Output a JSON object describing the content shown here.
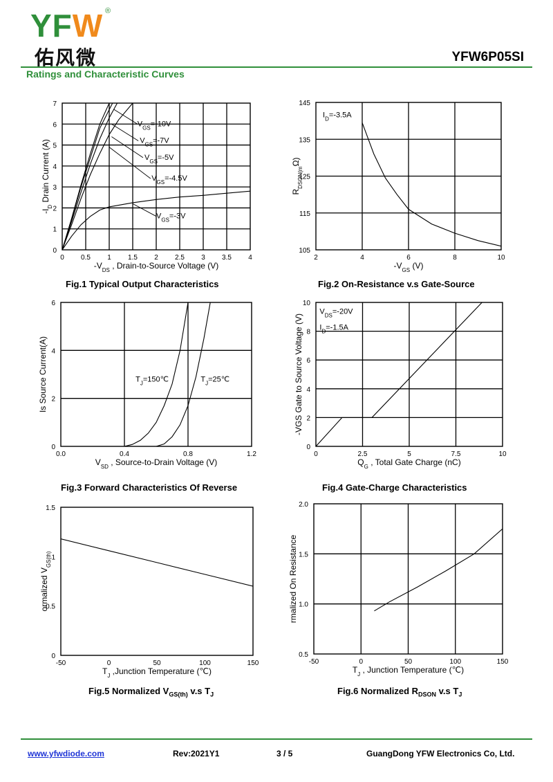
{
  "header": {
    "brand_latin": "YFW",
    "brand_cn": "佑风微",
    "registered": "®",
    "part_number": "YFW6P05SI",
    "section_title": "Ratings and Characteristic Curves"
  },
  "footer": {
    "website": "www.yfwdiode.com",
    "revision": "Rev:2021Y1",
    "page": "3 / 5",
    "company": "GuangDong YFW Electronics Co, Ltd."
  },
  "colors": {
    "brand_green": "#2f8f3a",
    "brand_orange": "#f08a1c",
    "link_blue": "#1f35d6"
  },
  "chart_data": [
    {
      "id": "fig1",
      "type": "line",
      "caption": "Fig.1 Typical Output Characteristics",
      "xlabel": "-V_DS , Drain-to-Source Voltage (V)",
      "ylabel": "-I_D Drain Current (A)",
      "xlim": [
        0,
        4
      ],
      "ylim": [
        0,
        7
      ],
      "grid": true,
      "xticks": [
        0,
        0.5,
        1,
        1.5,
        2,
        2.5,
        3,
        3.5,
        4
      ],
      "xticklabels": [
        "0",
        "0.5",
        "1",
        "1.5",
        "2",
        "2.5",
        "3",
        "3.5",
        "4"
      ],
      "yticks": [
        0,
        1,
        2,
        3,
        4,
        5,
        6,
        7
      ],
      "yticklabels": [
        "0",
        "1",
        "2",
        "3",
        "4",
        "5",
        "6",
        "7"
      ],
      "series": [
        {
          "name": "V_GS=-10V",
          "x": [
            0,
            0.2,
            0.4,
            0.6,
            0.8,
            1.0
          ],
          "y": [
            0,
            1.5,
            3.1,
            4.6,
            6.0,
            7.0
          ]
        },
        {
          "name": "V_GS=-7V",
          "x": [
            0,
            0.2,
            0.4,
            0.6,
            0.8,
            1.07
          ],
          "y": [
            0,
            1.45,
            3.0,
            4.4,
            5.8,
            7.0
          ]
        },
        {
          "name": "V_GS=-5V",
          "x": [
            0,
            0.2,
            0.4,
            0.6,
            0.8,
            1.0,
            1.17
          ],
          "y": [
            0,
            1.35,
            2.75,
            4.1,
            5.3,
            6.3,
            7.0
          ]
        },
        {
          "name": "V_GS=-4.5V",
          "x": [
            0,
            0.2,
            0.4,
            0.6,
            0.8,
            1.0,
            1.2,
            1.5
          ],
          "y": [
            0,
            1.2,
            2.45,
            3.6,
            4.6,
            5.5,
            6.2,
            7.0
          ]
        },
        {
          "name": "V_GS=-3V",
          "x": [
            0,
            0.2,
            0.4,
            0.6,
            0.8,
            1.0,
            1.5,
            2.0,
            2.5,
            3.0,
            3.5,
            4.0
          ],
          "y": [
            0,
            0.65,
            1.2,
            1.6,
            1.9,
            2.05,
            2.25,
            2.4,
            2.52,
            2.6,
            2.7,
            2.8
          ]
        }
      ],
      "annotations": [
        {
          "text": "V_GS=-10V",
          "x": 1.6,
          "y": 5.9
        },
        {
          "text": "V_GS=-7V",
          "x": 1.65,
          "y": 5.1
        },
        {
          "text": "V_GS=-5V",
          "x": 1.75,
          "y": 4.3
        },
        {
          "text": "V_GS=-4.5V",
          "x": 1.9,
          "y": 3.3
        },
        {
          "text": "V_GS=-3V",
          "x": 2.0,
          "y": 1.5
        }
      ]
    },
    {
      "id": "fig2",
      "type": "line",
      "caption": "Fig.2 On-Resistance v.s Gate-Source",
      "xlabel": "-V_GS (V)",
      "ylabel": "R_DSON(mΩ)",
      "xlim": [
        2,
        10
      ],
      "ylim": [
        105,
        145
      ],
      "grid": true,
      "xticks": [
        2,
        4,
        6,
        8,
        10
      ],
      "xticklabels": [
        "2",
        "4",
        "6",
        "8",
        "10"
      ],
      "yticks": [
        105,
        115,
        125,
        135,
        145
      ],
      "yticklabels": [
        "105",
        "115",
        "125",
        "135",
        "145"
      ],
      "series": [
        {
          "x": [
            4.0,
            4.5,
            5.0,
            5.5,
            6.0,
            7.0,
            8.0,
            9.0,
            10.0
          ],
          "y": [
            139.5,
            131,
            124.5,
            120,
            116,
            112,
            109.5,
            107.5,
            106
          ]
        }
      ],
      "annotations": [
        {
          "text": "I_D=-3.5A",
          "x": 2.3,
          "y": 141
        }
      ]
    },
    {
      "id": "fig3",
      "type": "line",
      "caption": "Fig.3 Forward Characteristics Of Reverse",
      "xlabel": "V_SD , Source-to-Drain Voltage (V)",
      "ylabel": "Is Source Current(A)",
      "xlim": [
        0,
        1.2
      ],
      "ylim": [
        0,
        6
      ],
      "grid": true,
      "xticks": [
        0,
        0.4,
        0.8,
        1.2
      ],
      "xticklabels": [
        "0.0",
        "0.4",
        "0.8",
        "1.2"
      ],
      "yticks": [
        0,
        2,
        4,
        6
      ],
      "yticklabels": [
        "0",
        "2",
        "4",
        "6"
      ],
      "series": [
        {
          "name": "T_J=150℃",
          "x": [
            0,
            0.4,
            0.45,
            0.5,
            0.55,
            0.6,
            0.65,
            0.7,
            0.75,
            0.8
          ],
          "y": [
            0,
            0,
            0.08,
            0.25,
            0.55,
            1.0,
            1.7,
            2.6,
            4.0,
            6.0
          ]
        },
        {
          "name": "T_J=25℃",
          "x": [
            0,
            0.6,
            0.65,
            0.7,
            0.75,
            0.8,
            0.85,
            0.9,
            0.94
          ],
          "y": [
            0,
            0,
            0.1,
            0.4,
            0.9,
            1.7,
            2.9,
            4.5,
            6.0
          ]
        }
      ],
      "annotations": [
        {
          "text": "T_J=150℃",
          "x": 0.47,
          "y": 2.7
        },
        {
          "text": "T_J=25℃",
          "x": 0.88,
          "y": 2.7
        }
      ]
    },
    {
      "id": "fig4",
      "type": "line",
      "caption": "Fig.4 Gate-Charge Characteristics",
      "xlabel": "Q_G , Total Gate Charge (nC)",
      "ylabel": "-VGS Gate to Source Voltage (V)",
      "xlim": [
        0,
        10
      ],
      "ylim": [
        0,
        10
      ],
      "grid": true,
      "xticks": [
        0,
        2.5,
        5,
        7.5,
        10
      ],
      "xticklabels": [
        "0",
        "2.5",
        "5",
        "7.5",
        "10"
      ],
      "yticks": [
        0,
        2,
        4,
        6,
        8,
        10
      ],
      "yticklabels": [
        "0",
        "2",
        "4",
        "6",
        "8",
        "10"
      ],
      "series": [
        {
          "x": [
            0,
            1.4,
            3.0,
            8.9
          ],
          "y": [
            0,
            2.0,
            2.0,
            10.0
          ]
        }
      ],
      "annotations": [
        {
          "text": "V_DS=-20V",
          "x": 0.2,
          "y": 9.2
        },
        {
          "text": "I_D=-1.5A",
          "x": 0.2,
          "y": 8.1
        }
      ]
    },
    {
      "id": "fig5",
      "type": "line",
      "caption": "Fig.5 Normalized V_GS(th) v.s T_J",
      "xlabel": "T_J ,Junction Temperature (℃)",
      "ylabel": "ormalized V_GS(th)",
      "xlim": [
        -50,
        150
      ],
      "ylim": [
        0,
        1.5
      ],
      "grid": false,
      "xticks": [
        -50,
        0,
        50,
        100,
        150
      ],
      "xticklabels": [
        "-50",
        "0",
        "50",
        "100",
        "150"
      ],
      "yticks": [
        0,
        0.5,
        1,
        1.5
      ],
      "yticklabels": [
        "0",
        "0.5",
        "1",
        "1.5"
      ],
      "series": [
        {
          "x": [
            -50,
            0,
            50,
            100,
            150
          ],
          "y": [
            1.18,
            1.06,
            0.94,
            0.82,
            0.7
          ]
        }
      ]
    },
    {
      "id": "fig6",
      "type": "line",
      "caption": "Fig.6 Normalized R_DSON v.s T_J",
      "xlabel": "T_J , Junction Temperature (℃)",
      "ylabel": "rmalized On Resistance",
      "xlim": [
        -50,
        150
      ],
      "ylim": [
        0.5,
        2.0
      ],
      "grid": true,
      "xticks": [
        -50,
        0,
        50,
        100,
        150
      ],
      "xticklabels": [
        "-50",
        "0",
        "50",
        "100",
        "150"
      ],
      "yticks": [
        0.5,
        1.0,
        1.5,
        2.0
      ],
      "yticklabels": [
        "0.5",
        "1.0",
        "1.5",
        "2.0"
      ],
      "series": [
        {
          "x": [
            14,
            30,
            60,
            90,
            120,
            150
          ],
          "y": [
            0.93,
            1.02,
            1.17,
            1.33,
            1.5,
            1.75
          ]
        }
      ]
    }
  ]
}
